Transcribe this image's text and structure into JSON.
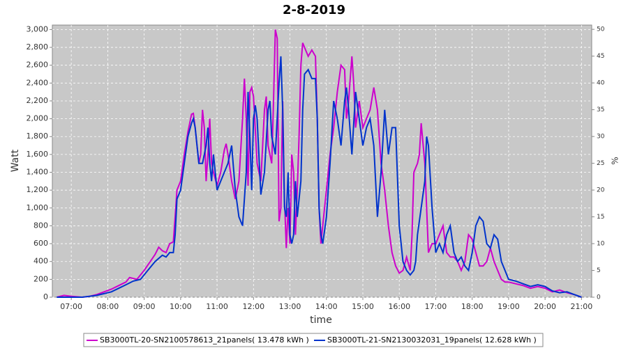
{
  "chart_data": {
    "type": "line",
    "title": "2-8-2019",
    "xlabel": "time",
    "ylabel": "Watt",
    "y2label": "%",
    "xlim": [
      6.48,
      21.28
    ],
    "xticks": [
      {
        "value": 7,
        "label": "07:00"
      },
      {
        "value": 8,
        "label": "08:00"
      },
      {
        "value": 9,
        "label": "09:00"
      },
      {
        "value": 10,
        "label": "10:00"
      },
      {
        "value": 11,
        "label": "11:00"
      },
      {
        "value": 12,
        "label": "12:00"
      },
      {
        "value": 13,
        "label": "13:00"
      },
      {
        "value": 14,
        "label": "14:00"
      },
      {
        "value": 15,
        "label": "15:00"
      },
      {
        "value": 16,
        "label": "16:00"
      },
      {
        "value": 17,
        "label": "17:00"
      },
      {
        "value": 18,
        "label": "18:00"
      },
      {
        "value": 19,
        "label": "19:00"
      },
      {
        "value": 20,
        "label": "20:00"
      },
      {
        "value": 21,
        "label": "21:00"
      }
    ],
    "ylim": [
      0,
      3050
    ],
    "yticks": [
      0,
      200,
      400,
      600,
      800,
      {
        "value": 1000,
        "label": "1,000"
      },
      {
        "value": 1200,
        "label": "1,200"
      },
      {
        "value": 1400,
        "label": "1,400"
      },
      {
        "value": 1600,
        "label": "1,600"
      },
      {
        "value": 1800,
        "label": "1,800"
      },
      {
        "value": 2000,
        "label": "2,000"
      },
      {
        "value": 2200,
        "label": "2,200"
      },
      {
        "value": 2400,
        "label": "2,400"
      },
      {
        "value": 2600,
        "label": "2,600"
      },
      {
        "value": 2800,
        "label": "2,800"
      },
      {
        "value": 3000,
        "label": "3,000"
      }
    ],
    "y2lim": [
      0,
      50.8
    ],
    "y2ticks": [
      0,
      5,
      10,
      15,
      20,
      25,
      30,
      35,
      40,
      45,
      50
    ],
    "grid": true,
    "legend": "bottom",
    "series": [
      {
        "name": "SB3000TL-20-SN2100578613_21panels( 13.478 kWh )",
        "color": "#cc00cc",
        "x": [
          6.6,
          6.8,
          7.0,
          7.3,
          7.5,
          7.7,
          7.9,
          8.1,
          8.3,
          8.5,
          8.6,
          8.8,
          9.0,
          9.2,
          9.3,
          9.4,
          9.5,
          9.6,
          9.7,
          9.8,
          9.85,
          9.9,
          10.0,
          10.1,
          10.2,
          10.3,
          10.35,
          10.4,
          10.5,
          10.55,
          10.6,
          10.65,
          10.7,
          10.75,
          10.8,
          10.85,
          10.9,
          11.0,
          11.1,
          11.2,
          11.25,
          11.3,
          11.4,
          11.5,
          11.6,
          11.7,
          11.75,
          11.8,
          11.85,
          11.9,
          11.95,
          12.0,
          12.1,
          12.2,
          12.3,
          12.35,
          12.4,
          12.5,
          12.55,
          12.6,
          12.65,
          12.7,
          12.75,
          12.8,
          12.85,
          12.9,
          12.95,
          13.0,
          13.05,
          13.1,
          13.15,
          13.2,
          13.25,
          13.3,
          13.35,
          13.4,
          13.5,
          13.6,
          13.7,
          13.75,
          13.8,
          13.85,
          13.9,
          14.0,
          14.1,
          14.2,
          14.3,
          14.4,
          14.5,
          14.55,
          14.6,
          14.7,
          14.75,
          14.8,
          14.9,
          15.0,
          15.1,
          15.2,
          15.3,
          15.4,
          15.5,
          15.6,
          15.7,
          15.8,
          15.9,
          16.0,
          16.1,
          16.2,
          16.3,
          16.35,
          16.4,
          16.5,
          16.55,
          16.6,
          16.7,
          16.8,
          16.9,
          17.0,
          17.1,
          17.2,
          17.3,
          17.4,
          17.5,
          17.6,
          17.7,
          17.8,
          17.9,
          18.0,
          18.1,
          18.2,
          18.3,
          18.4,
          18.5,
          18.6,
          18.7,
          18.8,
          18.9,
          19.0,
          19.2,
          19.4,
          19.6,
          19.8,
          20.0,
          20.2,
          20.4,
          20.6,
          20.8,
          21.0
        ],
        "values": [
          0,
          20,
          10,
          0,
          10,
          30,
          60,
          90,
          130,
          170,
          220,
          200,
          300,
          420,
          480,
          560,
          520,
          500,
          600,
          620,
          900,
          1200,
          1300,
          1600,
          1850,
          2050,
          2060,
          1900,
          1500,
          1600,
          2100,
          1900,
          1300,
          1600,
          2000,
          1500,
          1400,
          1250,
          1400,
          1650,
          1720,
          1600,
          1300,
          1100,
          1300,
          2000,
          2450,
          2000,
          1250,
          2300,
          2350,
          2250,
          1500,
          1300,
          2100,
          2250,
          1700,
          1500,
          2200,
          3000,
          2900,
          850,
          1000,
          2200,
          1100,
          550,
          1000,
          600,
          1600,
          1400,
          700,
          1200,
          1800,
          2600,
          2850,
          2800,
          2700,
          2770,
          2700,
          2000,
          1000,
          600,
          800,
          1200,
          1600,
          1900,
          2300,
          2600,
          2550,
          2000,
          2150,
          2700,
          2400,
          1900,
          2200,
          1900,
          2000,
          2100,
          2350,
          2100,
          1500,
          1200,
          800,
          500,
          350,
          270,
          300,
          450,
          300,
          700,
          1400,
          1500,
          1600,
          1950,
          1500,
          500,
          600,
          600,
          700,
          800,
          500,
          450,
          450,
          400,
          300,
          400,
          700,
          650,
          500,
          350,
          350,
          400,
          550,
          400,
          300,
          200,
          170,
          170,
          150,
          130,
          100,
          120,
          100,
          60,
          80,
          50,
          30,
          0
        ]
      },
      {
        "name": "SB3000TL-21-SN2130032031_19panels( 12.628 kWh )",
        "color": "#0033cc",
        "x": [
          6.6,
          7.0,
          7.3,
          7.5,
          7.7,
          7.9,
          8.1,
          8.3,
          8.5,
          8.7,
          8.9,
          9.1,
          9.3,
          9.5,
          9.6,
          9.7,
          9.8,
          9.85,
          9.9,
          10.0,
          10.1,
          10.2,
          10.3,
          10.35,
          10.4,
          10.5,
          10.6,
          10.7,
          10.75,
          10.8,
          10.85,
          10.9,
          11.0,
          11.1,
          11.2,
          11.3,
          11.4,
          11.5,
          11.6,
          11.7,
          11.8,
          11.85,
          11.9,
          11.95,
          12.0,
          12.05,
          12.1,
          12.2,
          12.3,
          12.4,
          12.45,
          12.5,
          12.6,
          12.7,
          12.75,
          12.8,
          12.85,
          12.9,
          12.95,
          13.0,
          13.05,
          13.1,
          13.15,
          13.2,
          13.3,
          13.35,
          13.4,
          13.5,
          13.6,
          13.7,
          13.75,
          13.8,
          13.85,
          13.9,
          13.95,
          14.0,
          14.1,
          14.2,
          14.3,
          14.4,
          14.5,
          14.55,
          14.6,
          14.7,
          14.8,
          14.9,
          15.0,
          15.1,
          15.2,
          15.3,
          15.4,
          15.5,
          15.6,
          15.7,
          15.8,
          15.9,
          16.0,
          16.1,
          16.2,
          16.3,
          16.4,
          16.45,
          16.5,
          16.6,
          16.7,
          16.75,
          16.8,
          16.9,
          17.0,
          17.1,
          17.2,
          17.3,
          17.4,
          17.5,
          17.6,
          17.7,
          17.8,
          17.9,
          18.0,
          18.1,
          18.2,
          18.3,
          18.4,
          18.5,
          18.6,
          18.7,
          18.8,
          18.9,
          19.0,
          19.2,
          19.4,
          19.6,
          19.8,
          20.0,
          20.2,
          20.4,
          20.6,
          20.8,
          21.0
        ],
        "values": [
          0,
          0,
          0,
          10,
          20,
          40,
          60,
          100,
          140,
          180,
          200,
          300,
          400,
          470,
          450,
          500,
          500,
          700,
          1100,
          1200,
          1500,
          1800,
          1950,
          2000,
          1900,
          1500,
          1500,
          1700,
          1900,
          1500,
          1300,
          1600,
          1200,
          1300,
          1400,
          1500,
          1700,
          1200,
          900,
          800,
          1400,
          2300,
          1800,
          1200,
          2000,
          2150,
          2000,
          1150,
          1400,
          2100,
          2200,
          1800,
          1600,
          2400,
          2700,
          2100,
          1000,
          900,
          1400,
          700,
          600,
          700,
          1300,
          900,
          1300,
          2100,
          2500,
          2550,
          2450,
          2450,
          2000,
          1000,
          700,
          600,
          750,
          900,
          1500,
          2200,
          2000,
          1700,
          2200,
          2350,
          2150,
          1600,
          2300,
          2000,
          1700,
          1900,
          2000,
          1700,
          900,
          1400,
          2100,
          1600,
          1900,
          1900,
          800,
          400,
          300,
          250,
          300,
          400,
          700,
          1000,
          1300,
          1800,
          1700,
          1000,
          500,
          600,
          500,
          700,
          800,
          500,
          400,
          450,
          350,
          300,
          500,
          800,
          900,
          850,
          600,
          550,
          700,
          650,
          400,
          300,
          200,
          180,
          150,
          120,
          140,
          120,
          70,
          50,
          60,
          30,
          0
        ]
      }
    ]
  }
}
